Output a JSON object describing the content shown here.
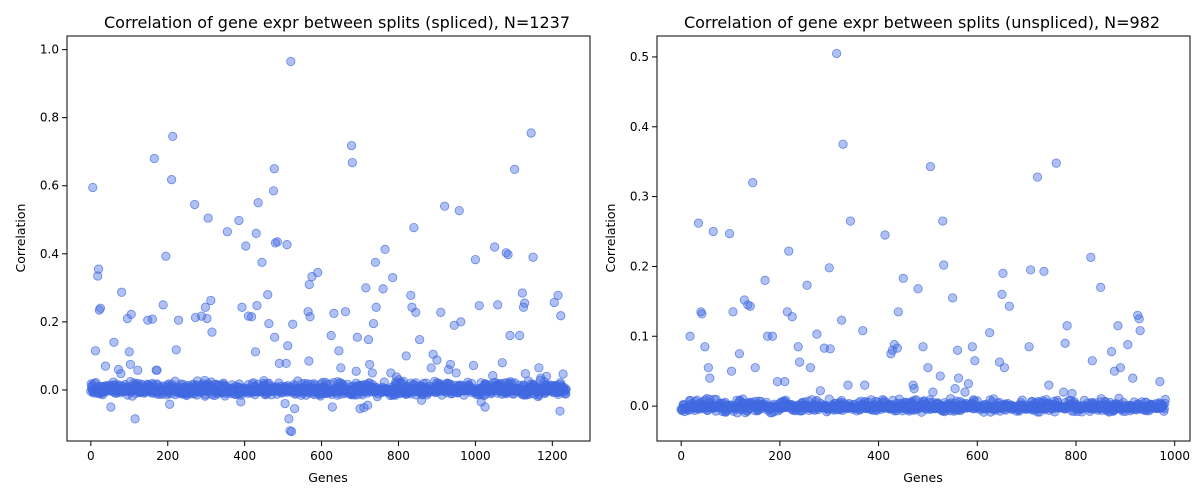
{
  "chart_data": [
    {
      "type": "scatter",
      "title": "Correlation of gene expr between splits (spliced), N=1237",
      "xlabel": "Genes",
      "ylabel": "Correlation",
      "xlim": [
        -62,
        1298
      ],
      "ylim": [
        -0.15,
        1.04
      ],
      "xticks": [
        0,
        200,
        400,
        600,
        800,
        1000,
        1200
      ],
      "yticks": [
        0.0,
        0.2,
        0.4,
        0.6,
        0.8,
        1.0
      ],
      "ytick_labels": [
        "0.0",
        "0.2",
        "0.4",
        "0.6",
        "0.8",
        "1.0"
      ],
      "n": 1237,
      "baseline_band": [
        -0.02,
        0.03
      ],
      "color": "#4169e1",
      "grid": false,
      "points": [
        [
          5,
          0.595
        ],
        [
          12,
          0.115
        ],
        [
          18,
          0.335
        ],
        [
          20,
          0.355
        ],
        [
          22,
          0.235
        ],
        [
          25,
          0.24
        ],
        [
          38,
          0.07
        ],
        [
          52,
          -0.05
        ],
        [
          60,
          0.14
        ],
        [
          72,
          0.06
        ],
        [
          78,
          0.048
        ],
        [
          80,
          0.287
        ],
        [
          95,
          0.21
        ],
        [
          100,
          0.112
        ],
        [
          103,
          0.075
        ],
        [
          105,
          0.222
        ],
        [
          115,
          -0.085
        ],
        [
          122,
          0.058
        ],
        [
          148,
          0.205
        ],
        [
          160,
          0.208
        ],
        [
          165,
          0.68
        ],
        [
          170,
          0.058
        ],
        [
          172,
          0.058
        ],
        [
          188,
          0.25
        ],
        [
          195,
          0.393
        ],
        [
          205,
          -0.042
        ],
        [
          210,
          0.618
        ],
        [
          213,
          0.745
        ],
        [
          222,
          0.118
        ],
        [
          228,
          0.205
        ],
        [
          270,
          0.545
        ],
        [
          272,
          0.213
        ],
        [
          288,
          0.217
        ],
        [
          298,
          0.243
        ],
        [
          302,
          0.21
        ],
        [
          305,
          0.505
        ],
        [
          312,
          0.263
        ],
        [
          315,
          0.17
        ],
        [
          355,
          0.465
        ],
        [
          385,
          0.498
        ],
        [
          390,
          -0.035
        ],
        [
          393,
          0.243
        ],
        [
          403,
          0.423
        ],
        [
          410,
          0.217
        ],
        [
          418,
          0.215
        ],
        [
          428,
          0.112
        ],
        [
          430,
          0.46
        ],
        [
          432,
          0.248
        ],
        [
          435,
          0.55
        ],
        [
          445,
          0.375
        ],
        [
          460,
          0.28
        ],
        [
          463,
          0.195
        ],
        [
          475,
          0.585
        ],
        [
          477,
          0.65
        ],
        [
          478,
          0.155
        ],
        [
          480,
          0.432
        ],
        [
          485,
          0.435
        ],
        [
          490,
          0.078
        ],
        [
          505,
          -0.04
        ],
        [
          508,
          0.078
        ],
        [
          510,
          0.427
        ],
        [
          512,
          0.13
        ],
        [
          515,
          -0.085
        ],
        [
          518,
          -0.12
        ],
        [
          520,
          0.965
        ],
        [
          522,
          -0.122
        ],
        [
          525,
          0.193
        ],
        [
          530,
          -0.055
        ],
        [
          565,
          0.23
        ],
        [
          567,
          0.085
        ],
        [
          568,
          0.31
        ],
        [
          570,
          0.215
        ],
        [
          575,
          0.333
        ],
        [
          590,
          0.345
        ],
        [
          625,
          0.16
        ],
        [
          628,
          -0.05
        ],
        [
          632,
          0.225
        ],
        [
          645,
          0.115
        ],
        [
          650,
          0.065
        ],
        [
          662,
          0.23
        ],
        [
          678,
          0.718
        ],
        [
          680,
          0.668
        ],
        [
          690,
          0.055
        ],
        [
          693,
          0.155
        ],
        [
          700,
          -0.055
        ],
        [
          710,
          -0.052
        ],
        [
          715,
          0.3
        ],
        [
          720,
          -0.045
        ],
        [
          722,
          0.148
        ],
        [
          725,
          0.075
        ],
        [
          732,
          0.05
        ],
        [
          735,
          0.195
        ],
        [
          740,
          0.375
        ],
        [
          742,
          0.243
        ],
        [
          760,
          0.297
        ],
        [
          765,
          0.413
        ],
        [
          780,
          0.05
        ],
        [
          785,
          0.33
        ],
        [
          795,
          0.038
        ],
        [
          800,
          0.03
        ],
        [
          820,
          0.1
        ],
        [
          832,
          0.278
        ],
        [
          835,
          0.243
        ],
        [
          840,
          0.477
        ],
        [
          845,
          0.228
        ],
        [
          855,
          0.148
        ],
        [
          860,
          -0.03
        ],
        [
          885,
          0.065
        ],
        [
          890,
          0.105
        ],
        [
          900,
          0.088
        ],
        [
          910,
          0.228
        ],
        [
          920,
          0.54
        ],
        [
          930,
          0.06
        ],
        [
          935,
          0.075
        ],
        [
          945,
          0.19
        ],
        [
          950,
          0.05
        ],
        [
          958,
          0.527
        ],
        [
          962,
          0.2
        ],
        [
          995,
          0.072
        ],
        [
          1000,
          0.383
        ],
        [
          1010,
          0.248
        ],
        [
          1015,
          -0.035
        ],
        [
          1025,
          -0.05
        ],
        [
          1045,
          0.042
        ],
        [
          1050,
          0.42
        ],
        [
          1058,
          0.25
        ],
        [
          1070,
          0.08
        ],
        [
          1080,
          0.403
        ],
        [
          1085,
          0.398
        ],
        [
          1090,
          0.16
        ],
        [
          1102,
          0.648
        ],
        [
          1115,
          0.16
        ],
        [
          1122,
          0.285
        ],
        [
          1125,
          0.243
        ],
        [
          1128,
          0.255
        ],
        [
          1130,
          0.048
        ],
        [
          1145,
          0.755
        ],
        [
          1150,
          0.39
        ],
        [
          1165,
          0.065
        ],
        [
          1170,
          0.035
        ],
        [
          1185,
          0.04
        ],
        [
          1205,
          0.257
        ],
        [
          1215,
          0.278
        ],
        [
          1220,
          -0.062
        ],
        [
          1222,
          0.218
        ],
        [
          1228,
          0.047
        ]
      ]
    },
    {
      "type": "scatter",
      "title": "Correlation of gene expr between splits (unspliced), N=982",
      "xlabel": "Genes",
      "ylabel": "Correlation",
      "xlim": [
        -49,
        1031
      ],
      "ylim": [
        -0.05,
        0.53
      ],
      "xticks": [
        0,
        200,
        400,
        600,
        800,
        1000
      ],
      "yticks": [
        0.0,
        0.1,
        0.2,
        0.3,
        0.4,
        0.5
      ],
      "ytick_labels": [
        "0.0",
        "0.1",
        "0.2",
        "0.3",
        "0.4",
        "0.5"
      ],
      "n": 982,
      "baseline_band": [
        -0.01,
        0.012
      ],
      "color": "#4169e1",
      "grid": false,
      "points": [
        [
          18,
          0.1
        ],
        [
          35,
          0.262
        ],
        [
          40,
          0.135
        ],
        [
          42,
          0.132
        ],
        [
          48,
          0.085
        ],
        [
          55,
          0.055
        ],
        [
          58,
          0.04
        ],
        [
          65,
          0.25
        ],
        [
          98,
          0.247
        ],
        [
          102,
          0.05
        ],
        [
          105,
          0.135
        ],
        [
          118,
          0.075
        ],
        [
          128,
          0.152
        ],
        [
          135,
          0.145
        ],
        [
          140,
          0.143
        ],
        [
          145,
          0.32
        ],
        [
          150,
          0.055
        ],
        [
          170,
          0.18
        ],
        [
          175,
          0.1
        ],
        [
          185,
          0.1
        ],
        [
          195,
          0.035
        ],
        [
          210,
          0.035
        ],
        [
          215,
          0.135
        ],
        [
          218,
          0.222
        ],
        [
          225,
          0.128
        ],
        [
          237,
          0.085
        ],
        [
          240,
          0.063
        ],
        [
          255,
          0.173
        ],
        [
          262,
          0.055
        ],
        [
          275,
          0.103
        ],
        [
          282,
          0.022
        ],
        [
          290,
          0.083
        ],
        [
          300,
          0.198
        ],
        [
          302,
          0.082
        ],
        [
          315,
          0.505
        ],
        [
          325,
          0.123
        ],
        [
          328,
          0.375
        ],
        [
          338,
          0.03
        ],
        [
          343,
          0.265
        ],
        [
          368,
          0.108
        ],
        [
          372,
          0.03
        ],
        [
          413,
          0.245
        ],
        [
          425,
          0.075
        ],
        [
          428,
          0.08
        ],
        [
          432,
          0.088
        ],
        [
          438,
          0.083
        ],
        [
          440,
          0.135
        ],
        [
          450,
          0.183
        ],
        [
          455,
          0.0
        ],
        [
          470,
          0.03
        ],
        [
          472,
          0.025
        ],
        [
          480,
          0.168
        ],
        [
          490,
          0.085
        ],
        [
          500,
          0.055
        ],
        [
          505,
          0.343
        ],
        [
          510,
          0.02
        ],
        [
          525,
          0.043
        ],
        [
          530,
          0.265
        ],
        [
          532,
          0.202
        ],
        [
          550,
          0.155
        ],
        [
          555,
          0.025
        ],
        [
          560,
          0.08
        ],
        [
          562,
          0.04
        ],
        [
          575,
          0.02
        ],
        [
          582,
          0.032
        ],
        [
          590,
          0.085
        ],
        [
          595,
          0.065
        ],
        [
          625,
          0.105
        ],
        [
          645,
          0.063
        ],
        [
          650,
          0.16
        ],
        [
          652,
          0.19
        ],
        [
          655,
          0.055
        ],
        [
          665,
          0.143
        ],
        [
          705,
          0.085
        ],
        [
          708,
          0.195
        ],
        [
          722,
          0.328
        ],
        [
          735,
          0.193
        ],
        [
          745,
          0.03
        ],
        [
          760,
          0.348
        ],
        [
          775,
          0.02
        ],
        [
          778,
          0.09
        ],
        [
          782,
          0.115
        ],
        [
          792,
          0.018
        ],
        [
          830,
          0.213
        ],
        [
          833,
          0.065
        ],
        [
          850,
          0.17
        ],
        [
          872,
          0.078
        ],
        [
          878,
          0.05
        ],
        [
          885,
          0.115
        ],
        [
          890,
          0.055
        ],
        [
          905,
          0.088
        ],
        [
          915,
          0.04
        ],
        [
          925,
          0.13
        ],
        [
          928,
          0.125
        ],
        [
          930,
          0.108
        ],
        [
          970,
          0.035
        ]
      ]
    }
  ]
}
